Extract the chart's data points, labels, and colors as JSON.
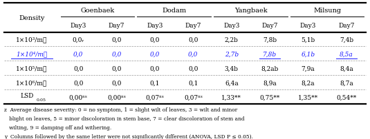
{
  "figsize": [
    5.35,
    2.03
  ],
  "dpi": 100,
  "col_headers_top": [
    "Goenbaek",
    "Dodam",
    "Yangbaek",
    "Milsung"
  ],
  "col_headers_sub": [
    "Day3",
    "Day7",
    "Day3",
    "Day7",
    "Day3",
    "Day7",
    "Day3",
    "Day7"
  ],
  "row_header": "Density",
  "rows": [
    {
      "density": "1×10³/mℓ",
      "italic": false,
      "values": [
        "0,0ᵣ",
        "0,0",
        "0,0",
        "0,0",
        "2,2b",
        "7,8b",
        "5,1b",
        "7,4b"
      ],
      "underline_vals": []
    },
    {
      "density": "1×10⁴/mℓ",
      "italic": true,
      "values": [
        "0,0",
        "0,0",
        "0,0",
        "0,0",
        "2,7b",
        "7,8b",
        "6,1b",
        "8,5a"
      ],
      "underline_vals": [
        5,
        7
      ]
    },
    {
      "density": "1×10⁵/mℓ",
      "italic": false,
      "values": [
        "0,0",
        "0,0",
        "0,0",
        "0,0",
        "3,4b",
        "8,2ab",
        "7,9a",
        "8,4a"
      ],
      "underline_vals": []
    },
    {
      "density": "1×10⁶/mℓ",
      "italic": false,
      "values": [
        "0,0",
        "0,0",
        "0,1",
        "0,1",
        "6,4a",
        "8,9a",
        "8,2a",
        "8,7a"
      ],
      "underline_vals": []
    }
  ],
  "lsd_label": "LSD",
  "lsd_sub": "0.05",
  "lsd_values": [
    "0,00ⁿˢ",
    "0,00ⁿˢ",
    "0,07ⁿˢ",
    "0,07ⁿˢ",
    "1,33**",
    "0,75**",
    "1,35**",
    "0,54**"
  ],
  "footnotes": [
    "z  Average disease severity: 0 = no symptom, 1 = slight wilt of leaves, 3 = wilt and minor",
    "   blight on leaves, 5 = minor discoloration in stem base, 7 = clear discoloration of stem and",
    "   wilting, 9 = damping off and withering.",
    "y  Columns followed by the same letter were not significantly different (ANOVA, LSD P ≤ 0.05)."
  ],
  "bg_color": "#ffffff",
  "text_color": "#000000",
  "italic_color": "#1a1aff",
  "fs_main": 6.5,
  "fs_header": 7.0,
  "fs_footnote": 5.4
}
